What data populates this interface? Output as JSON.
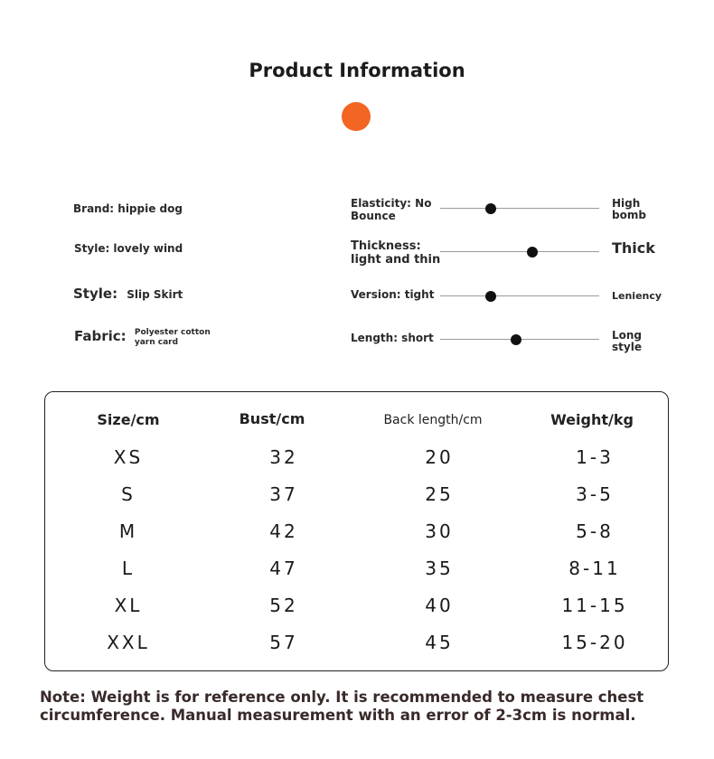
{
  "title": "Product Information",
  "accent_color": "#f26522",
  "left_attributes": {
    "brand": "Brand: hippie dog",
    "style1": "Style: lovely wind",
    "style2_label": "Style:",
    "style2_value": "Slip Skirt",
    "fabric_label": "Fabric:",
    "fabric_value_line1": "Polyester cotton",
    "fabric_value_line2": "yarn card"
  },
  "scales": [
    {
      "label_line1": "Elasticity: No",
      "label_line2": "Bounce",
      "end_line1": "High",
      "end_line2": "bomb",
      "level": 0.32
    },
    {
      "label_line1": "Thickness:",
      "label_line2": "light and thin",
      "end_line1": "Thick",
      "end_line2": "",
      "level": 0.58
    },
    {
      "label_line1": "Version: tight",
      "label_line2": "",
      "end_line1": "Leniency",
      "end_line2": "",
      "level": 0.32
    },
    {
      "label_line1": "Length: short",
      "label_line2": "",
      "end_line1": "Long",
      "end_line2": "style",
      "level": 0.48
    }
  ],
  "size_table": {
    "headers": [
      "Size/cm",
      "Bust/cm",
      "Back length/cm",
      "Weight/kg"
    ],
    "rows": [
      [
        "XS",
        "32",
        "20",
        "1-3"
      ],
      [
        "S",
        "37",
        "25",
        "3-5"
      ],
      [
        "M",
        "42",
        "30",
        "5-8"
      ],
      [
        "L",
        "47",
        "35",
        "8-11"
      ],
      [
        "XL",
        "52",
        "40",
        "11-15"
      ],
      [
        "XXL",
        "57",
        "45",
        "15-20"
      ]
    ]
  },
  "note": "Note: Weight is for reference only. It is recommended to measure chest circumference. Manual measurement with an error of 2-3cm is normal."
}
